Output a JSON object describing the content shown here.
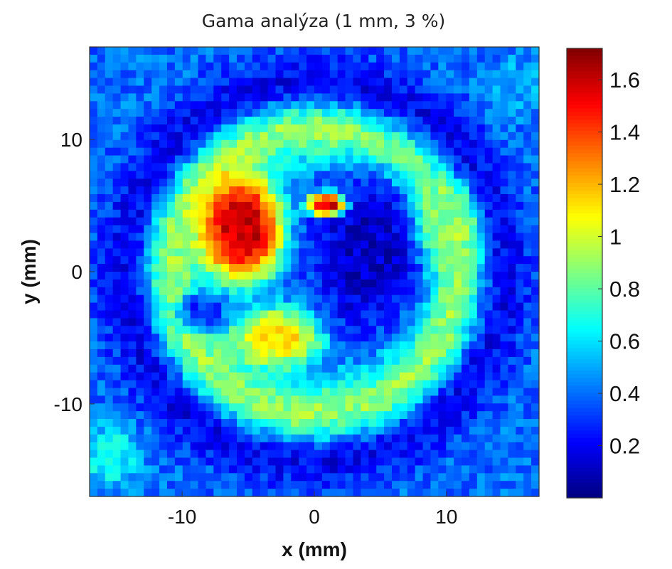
{
  "chart_data": {
    "type": "heatmap",
    "title": "Gama analýza (1 mm, 3 %)",
    "xlabel": "x (mm)",
    "ylabel": "y (mm)",
    "xlim": [
      -17,
      17
    ],
    "ylim": [
      -17,
      17
    ],
    "x_ticks": [
      {
        "value": -10,
        "label": "-10"
      },
      {
        "value": 0,
        "label": "0"
      },
      {
        "value": 10,
        "label": "10"
      }
    ],
    "y_ticks": [
      {
        "value": 10,
        "label": "10"
      },
      {
        "value": 0,
        "label": "0"
      },
      {
        "value": -10,
        "label": "-10"
      }
    ],
    "colorbar": {
      "range": [
        0,
        1.72
      ],
      "colormap": "jet",
      "ticks": [
        {
          "value": 0.2,
          "label": "0.2"
        },
        {
          "value": 0.4,
          "label": "0.4"
        },
        {
          "value": 0.6,
          "label": "0.6"
        },
        {
          "value": 0.8,
          "label": "0.8"
        },
        {
          "value": 1.0,
          "label": "1"
        },
        {
          "value": 1.2,
          "label": "1.2"
        },
        {
          "value": 1.4,
          "label": "1.4"
        },
        {
          "value": 1.6,
          "label": "1.6"
        }
      ]
    },
    "grid": false,
    "field": {
      "description_units": "gamma index vs x,y (mm)",
      "background": 0.4,
      "features": [
        {
          "kind": "ring",
          "cx": 0,
          "cy": 0,
          "radius": 11.2,
          "width": 2.8,
          "value": 0.95
        },
        {
          "kind": "ring",
          "cx": 0,
          "cy": 0,
          "radius": 14.5,
          "width": 2.2,
          "value": 0.2
        },
        {
          "kind": "blob",
          "cx": -5.5,
          "cy": 3.2,
          "rx": 3.2,
          "ry": 4.2,
          "value": 1.62
        },
        {
          "kind": "blob",
          "cx": -2.8,
          "cy": -5.0,
          "rx": 3.5,
          "ry": 2.3,
          "value": 1.15
        },
        {
          "kind": "blob",
          "cx": 4.0,
          "cy": 1.5,
          "rx": 4.3,
          "ry": 6.2,
          "value": 0.12
        },
        {
          "kind": "blob",
          "cx": 0.9,
          "cy": 5.1,
          "rx": 1.5,
          "ry": 0.9,
          "value": 1.6
        },
        {
          "kind": "blob",
          "cx": -8.5,
          "cy": -3.0,
          "rx": 2.0,
          "ry": 1.6,
          "value": 0.3
        },
        {
          "kind": "blob",
          "cx": 10.2,
          "cy": 3.5,
          "rx": 2.2,
          "ry": 3.2,
          "value": 0.9
        },
        {
          "kind": "blob",
          "cx": -15.5,
          "cy": -14.0,
          "rx": 2.5,
          "ry": 2.5,
          "value": 0.65
        },
        {
          "kind": "blob",
          "cx": 15.5,
          "cy": 14.0,
          "rx": 2.5,
          "ry": 2.5,
          "value": 0.5
        }
      ]
    }
  }
}
